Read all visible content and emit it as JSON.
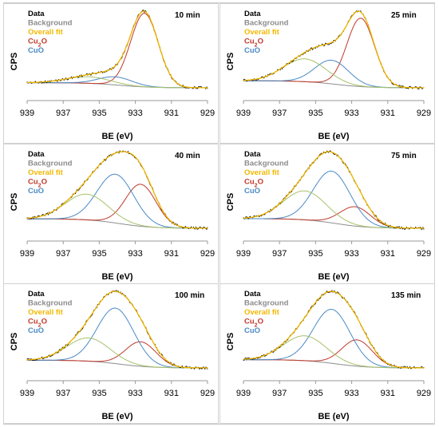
{
  "chart_data": {
    "type": "line",
    "xlabel": "BE (eV)",
    "ylabel": "CPS",
    "xlim": [
      939,
      929
    ],
    "x_reversed": true,
    "x_ticks": [
      "939",
      "937",
      "935",
      "933",
      "931",
      "929"
    ],
    "legend": {
      "entries": [
        {
          "key": "data",
          "text": "Data",
          "color": "#000000"
        },
        {
          "key": "background",
          "text": "Background",
          "color": "#8c8c8c"
        },
        {
          "key": "overall",
          "text": "Overall fit",
          "color": "#f2b800"
        },
        {
          "key": "cu2o",
          "text": "Cu",
          "sub": "2",
          "tail": "O",
          "color": "#c0392b"
        },
        {
          "key": "cuo",
          "text": "CuO",
          "color": "#4a8ac6"
        }
      ]
    },
    "panels": [
      {
        "label": "10 min",
        "background": {
          "left": 0.07,
          "right": 0.0
        },
        "peaks": [
          {
            "name": "Cu2O",
            "center": 932.5,
            "fwhm": 1.8,
            "height": 1.0
          },
          {
            "name": "CuO",
            "center": 934.1,
            "fwhm": 2.2,
            "height": 0.11
          },
          {
            "name": "CuO satellite",
            "center": 935.6,
            "fwhm": 2.8,
            "height": 0.09
          }
        ]
      },
      {
        "label": "25 min",
        "background": {
          "left": 0.08,
          "right": 0.0
        },
        "peaks": [
          {
            "name": "Cu2O",
            "center": 932.5,
            "fwhm": 1.8,
            "height": 0.78
          },
          {
            "name": "CuO",
            "center": 934.1,
            "fwhm": 2.2,
            "height": 0.27
          },
          {
            "name": "CuO satellite",
            "center": 935.6,
            "fwhm": 2.8,
            "height": 0.26
          }
        ]
      },
      {
        "label": "40 min",
        "background": {
          "left": 0.14,
          "right": 0.0
        },
        "peaks": [
          {
            "name": "Cu2O",
            "center": 932.7,
            "fwhm": 2.0,
            "height": 0.62
          },
          {
            "name": "CuO",
            "center": 934.1,
            "fwhm": 2.4,
            "height": 0.72
          },
          {
            "name": "CuO satellite",
            "center": 935.7,
            "fwhm": 2.8,
            "height": 0.38
          }
        ]
      },
      {
        "label": "75 min",
        "background": {
          "left": 0.14,
          "right": 0.0
        },
        "peaks": [
          {
            "name": "Cu2O",
            "center": 932.8,
            "fwhm": 2.0,
            "height": 0.28
          },
          {
            "name": "CuO",
            "center": 934.1,
            "fwhm": 2.4,
            "height": 0.75
          },
          {
            "name": "CuO satellite",
            "center": 935.6,
            "fwhm": 2.8,
            "height": 0.42
          }
        ]
      },
      {
        "label": "100 min",
        "background": {
          "left": 0.12,
          "right": 0.0
        },
        "peaks": [
          {
            "name": "Cu2O",
            "center": 932.7,
            "fwhm": 2.0,
            "height": 0.38
          },
          {
            "name": "CuO",
            "center": 934.1,
            "fwhm": 2.4,
            "height": 0.86
          },
          {
            "name": "CuO satellite",
            "center": 935.6,
            "fwhm": 2.8,
            "height": 0.36
          }
        ]
      },
      {
        "label": "135 min",
        "background": {
          "left": 0.12,
          "right": 0.0
        },
        "peaks": [
          {
            "name": "Cu2O",
            "center": 932.7,
            "fwhm": 2.0,
            "height": 0.38
          },
          {
            "name": "CuO",
            "center": 934.1,
            "fwhm": 2.4,
            "height": 0.78
          },
          {
            "name": "CuO satellite",
            "center": 935.6,
            "fwhm": 2.8,
            "height": 0.36
          }
        ]
      }
    ]
  },
  "colors": {
    "data": "#000000",
    "background": "#8c8c8c",
    "overall": "#f2b800",
    "cu2o": "#c0392b",
    "cuo": "#4a8ac6",
    "satellite": "#a6c26a"
  }
}
